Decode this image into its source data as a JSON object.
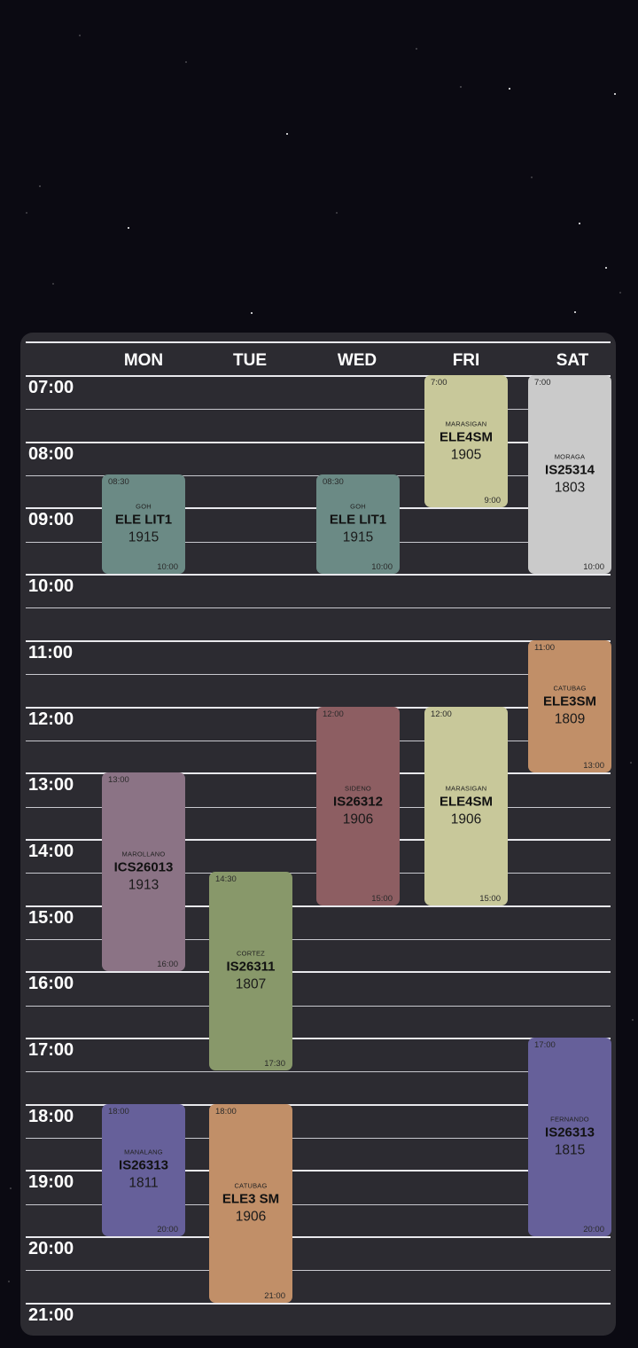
{
  "days": [
    "MON",
    "TUE",
    "WED",
    "FRI",
    "SAT"
  ],
  "times": [
    "07:00",
    "08:00",
    "09:00",
    "10:00",
    "11:00",
    "12:00",
    "13:00",
    "14:00",
    "15:00",
    "16:00",
    "17:00",
    "18:00",
    "19:00",
    "20:00",
    "21:00"
  ],
  "events": [
    {
      "day": 0,
      "start": 8.5,
      "end": 10,
      "start_label": "08:30",
      "end_label": "10:00",
      "prof": "GOH",
      "code": "ELE LIT1",
      "room": "1915",
      "color": "#6b8a85"
    },
    {
      "day": 2,
      "start": 8.5,
      "end": 10,
      "start_label": "08:30",
      "end_label": "10:00",
      "prof": "GOH",
      "code": "ELE LIT1",
      "room": "1915",
      "color": "#6b8a85"
    },
    {
      "day": 3,
      "start": 7,
      "end": 9,
      "start_label": "7:00",
      "end_label": "9:00",
      "prof": "MARASIGAN",
      "code": "ELE4SM",
      "room": "1905",
      "color": "#c8c89a"
    },
    {
      "day": 4,
      "start": 7,
      "end": 10,
      "start_label": "7:00",
      "end_label": "10:00",
      "prof": "MORAGA",
      "code": "IS25314",
      "room": "1803",
      "color": "#cacaca"
    },
    {
      "day": 4,
      "start": 11,
      "end": 13,
      "start_label": "11:00",
      "end_label": "13:00",
      "prof": "CATUBAG",
      "code": "ELE3SM",
      "room": "1809",
      "color": "#c18f68"
    },
    {
      "day": 2,
      "start": 12,
      "end": 15,
      "start_label": "12:00",
      "end_label": "15:00",
      "prof": "SIDENO",
      "code": "IS26312",
      "room": "1906",
      "color": "#8d5e62"
    },
    {
      "day": 3,
      "start": 12,
      "end": 15,
      "start_label": "12:00",
      "end_label": "15:00",
      "prof": "MARASIGAN",
      "code": "ELE4SM",
      "room": "1906",
      "color": "#c8c89a"
    },
    {
      "day": 0,
      "start": 13,
      "end": 16,
      "start_label": "13:00",
      "end_label": "16:00",
      "prof": "MAROLLANO",
      "code": "ICS26013",
      "room": "1913",
      "color": "#8b7385"
    },
    {
      "day": 1,
      "start": 14.5,
      "end": 17.5,
      "start_label": "14:30",
      "end_label": "17:30",
      "prof": "CORTEZ",
      "code": "IS26311",
      "room": "1807",
      "color": "#88986a"
    },
    {
      "day": 4,
      "start": 17,
      "end": 20,
      "start_label": "17:00",
      "end_label": "20:00",
      "prof": "FERNANDO",
      "code": "IS26313",
      "room": "1815",
      "color": "#66609a"
    },
    {
      "day": 0,
      "start": 18,
      "end": 20,
      "start_label": "18:00",
      "end_label": "20:00",
      "prof": "MANALANG",
      "code": "IS26313",
      "room": "1811",
      "color": "#66609a"
    },
    {
      "day": 1,
      "start": 18,
      "end": 21,
      "start_label": "18:00",
      "end_label": "21:00",
      "prof": "CATUBAG",
      "code": "ELE3 SM",
      "room": "1906",
      "color": "#c18f68"
    }
  ]
}
